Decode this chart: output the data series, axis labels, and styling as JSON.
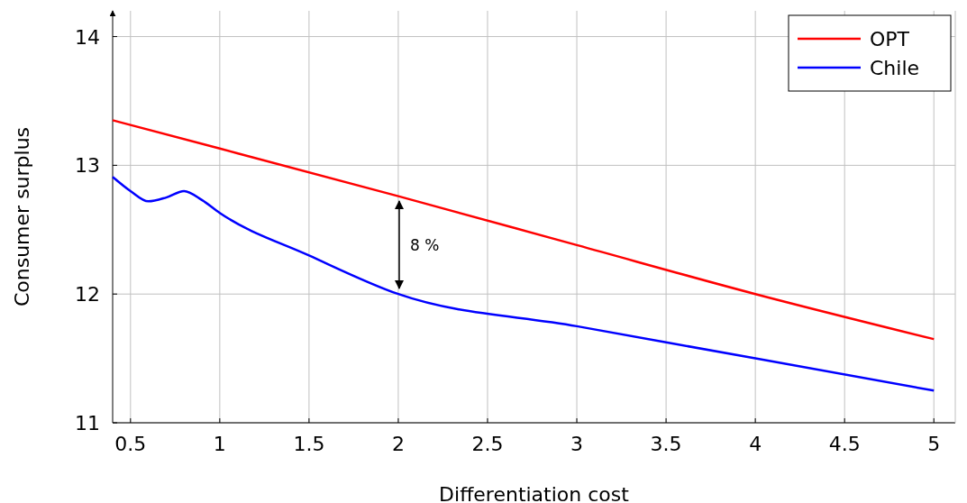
{
  "chart_data": {
    "type": "line",
    "xlabel": "Differentiation cost",
    "ylabel": "Consumer surplus",
    "xlim": [
      0.4,
      5.12
    ],
    "ylim": [
      11,
      14.2
    ],
    "xticks": [
      0.5,
      1,
      1.5,
      2,
      2.5,
      3,
      3.5,
      4,
      4.5,
      5
    ],
    "yticks": [
      11,
      12,
      13,
      14
    ],
    "grid": true,
    "legend": "top right",
    "marker": "none",
    "line_style": "solid",
    "series": [
      {
        "name": "OPT",
        "color": "#ff0000",
        "x": [
          0.4,
          1,
          2,
          3,
          4,
          5
        ],
        "values": [
          13.35,
          13.13,
          12.76,
          12.38,
          12.0,
          11.65
        ]
      },
      {
        "name": "Chile",
        "color": "#0000ff",
        "x": [
          0.4,
          0.5,
          0.6,
          0.7,
          0.8,
          0.9,
          1,
          1.5,
          2,
          3,
          4,
          5
        ],
        "values": [
          12.91,
          12.8,
          12.72,
          12.75,
          12.8,
          12.73,
          12.63,
          12.3,
          12.0,
          11.75,
          11.5,
          11.25
        ]
      }
    ],
    "annotations": [
      "8 %"
    ]
  }
}
